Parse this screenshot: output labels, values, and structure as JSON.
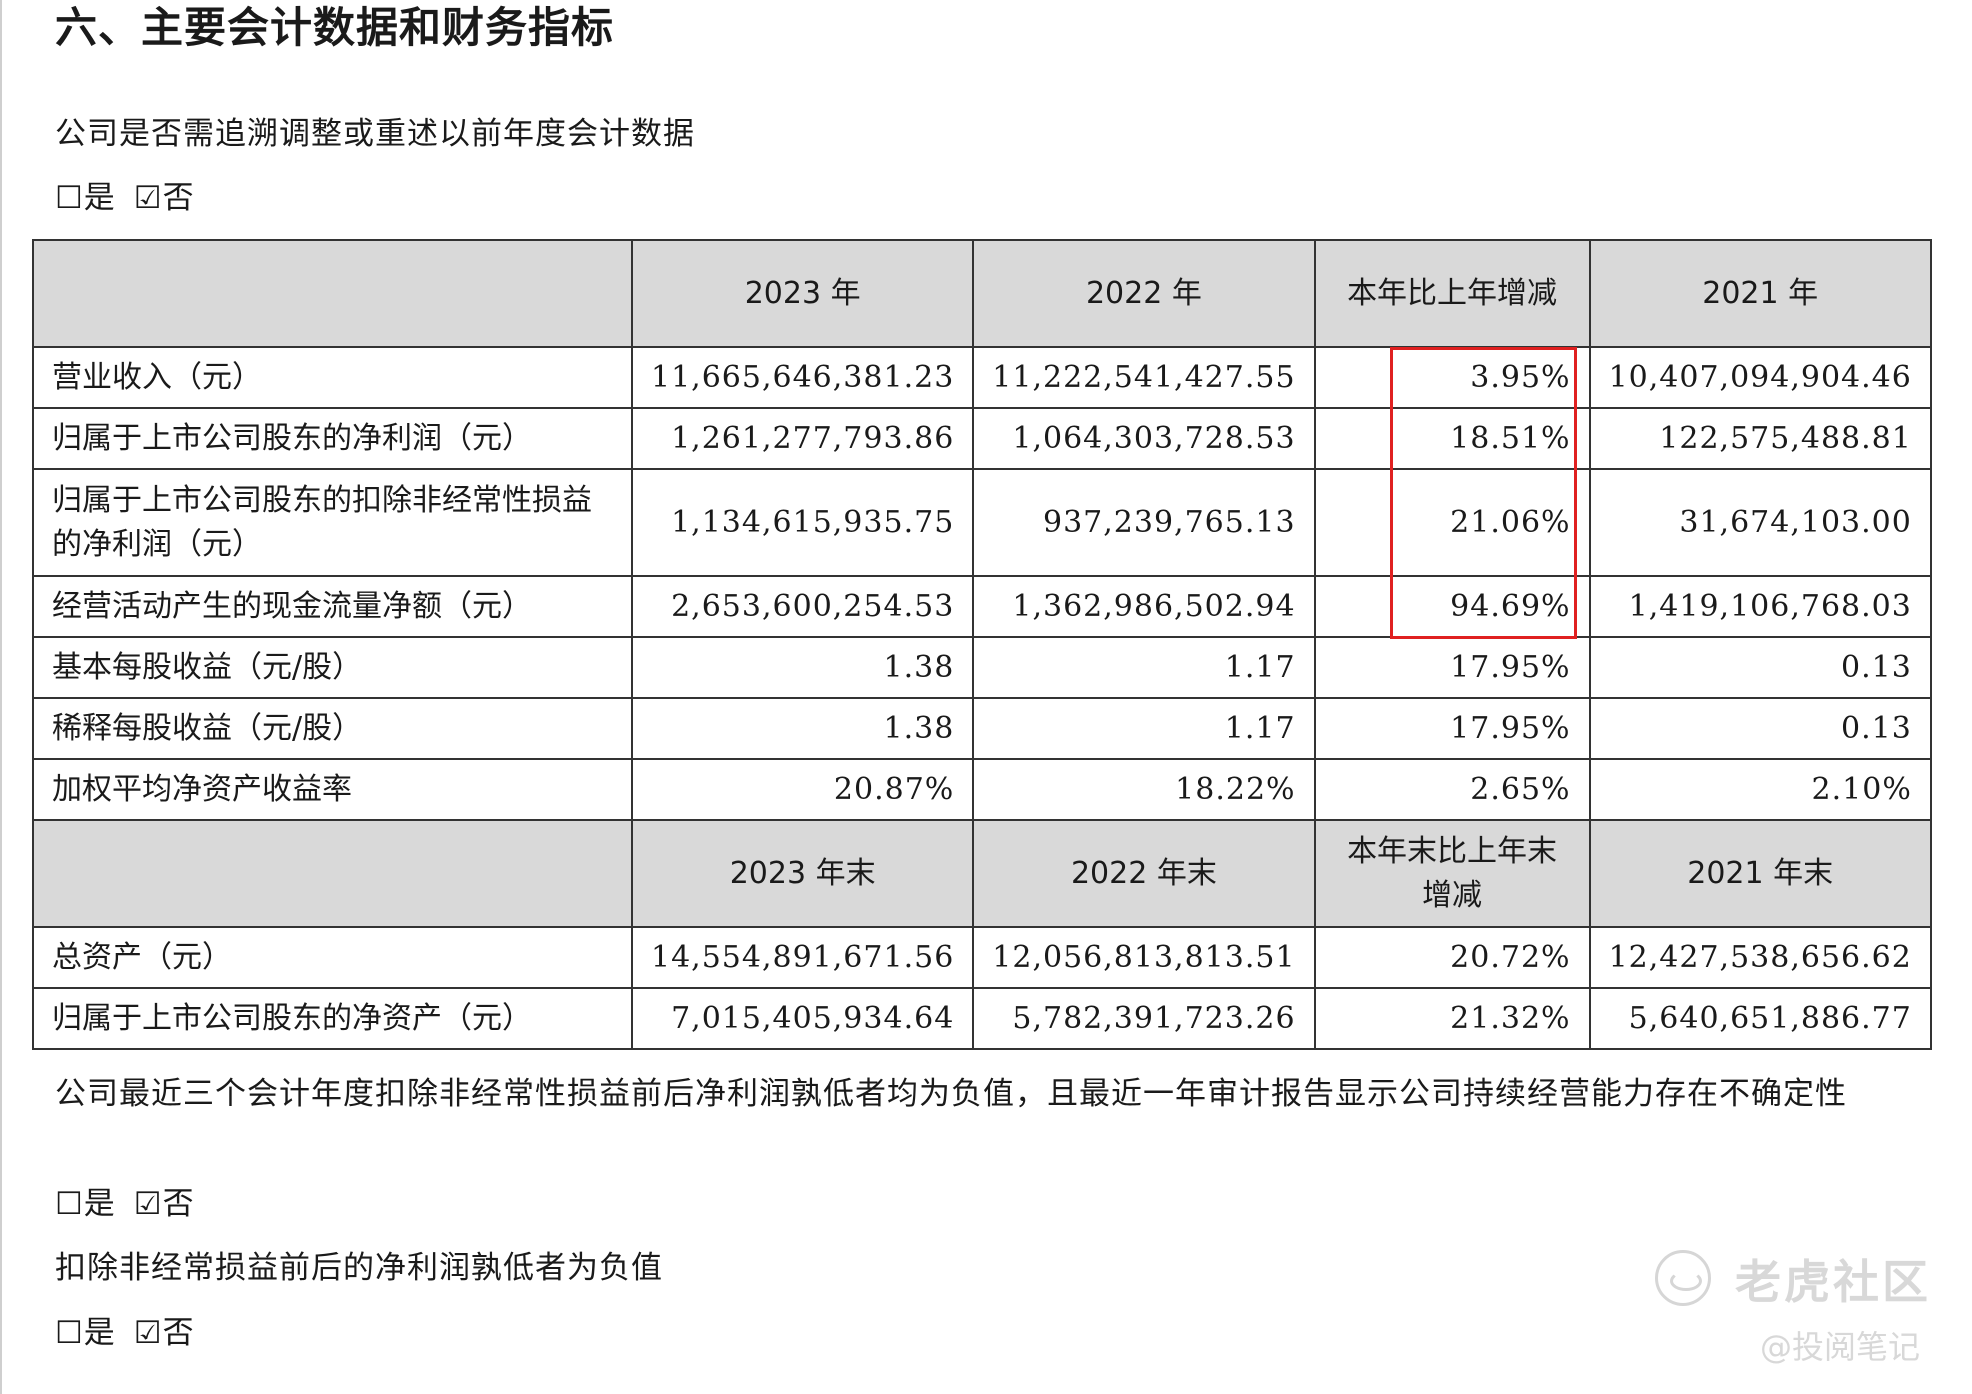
{
  "heading": "六、主要会计数据和财务指标",
  "q1": {
    "text": "公司是否需追溯调整或重述以前年度会计数据",
    "opt_yes_box": "☐",
    "opt_yes": "是",
    "opt_no_box": "☑",
    "opt_no": "否"
  },
  "table": {
    "header1": [
      "",
      "2023 年",
      "2022 年",
      "本年比上年增减",
      "2021 年"
    ],
    "header2": [
      "",
      "2023 年末",
      "2022 年末",
      "本年末比上年末增减",
      "2021 年末"
    ],
    "rows": [
      {
        "label": "营业收入（元）",
        "y2023": "11,665,646,381.23",
        "y2022": "11,222,541,427.55",
        "change": "3.95%",
        "y2021": "10,407,094,904.46"
      },
      {
        "label": "归属于上市公司股东的净利润（元）",
        "y2023": "1,261,277,793.86",
        "y2022": "1,064,303,728.53",
        "change": "18.51%",
        "y2021": "122,575,488.81"
      },
      {
        "label": "归属于上市公司股东的扣除非经常性损益的净利润（元）",
        "y2023": "1,134,615,935.75",
        "y2022": "937,239,765.13",
        "change": "21.06%",
        "y2021": "31,674,103.00"
      },
      {
        "label": "经营活动产生的现金流量净额（元）",
        "y2023": "2,653,600,254.53",
        "y2022": "1,362,986,502.94",
        "change": "94.69%",
        "y2021": "1,419,106,768.03"
      },
      {
        "label": "基本每股收益（元/股）",
        "y2023": "1.38",
        "y2022": "1.17",
        "change": "17.95%",
        "y2021": "0.13"
      },
      {
        "label": "稀释每股收益（元/股）",
        "y2023": "1.38",
        "y2022": "1.17",
        "change": "17.95%",
        "y2021": "0.13"
      },
      {
        "label": "加权平均净资产收益率",
        "y2023": "20.87%",
        "y2022": "18.22%",
        "change": "2.65%",
        "y2021": "2.10%"
      }
    ],
    "rows2": [
      {
        "label": "总资产（元）",
        "y2023": "14,554,891,671.56",
        "y2022": "12,056,813,813.51",
        "change": "20.72%",
        "y2021": "12,427,538,656.62"
      },
      {
        "label": "归属于上市公司股东的净资产（元）",
        "y2023": "7,015,405,934.64",
        "y2022": "5,782,391,723.26",
        "change": "21.32%",
        "y2021": "5,640,651,886.77"
      }
    ]
  },
  "q2": {
    "text": "公司最近三个会计年度扣除非经常性损益前后净利润孰低者均为负值，且最近一年审计报告显示公司持续经营能力存在不确定性",
    "opt_yes_box": "☐",
    "opt_yes": "是",
    "opt_no_box": "☑",
    "opt_no": "否"
  },
  "q3": {
    "text": "扣除非经常损益前后的净利润孰低者为负值",
    "opt_yes_box": "☐",
    "opt_yes": "是",
    "opt_no_box": "☑",
    "opt_no": "否"
  },
  "watermark": {
    "brand": "老虎社区",
    "author": "@投阅笔记"
  },
  "colors": {
    "header_bg": "#d9d9d9",
    "highlight_border": "#e02020"
  }
}
